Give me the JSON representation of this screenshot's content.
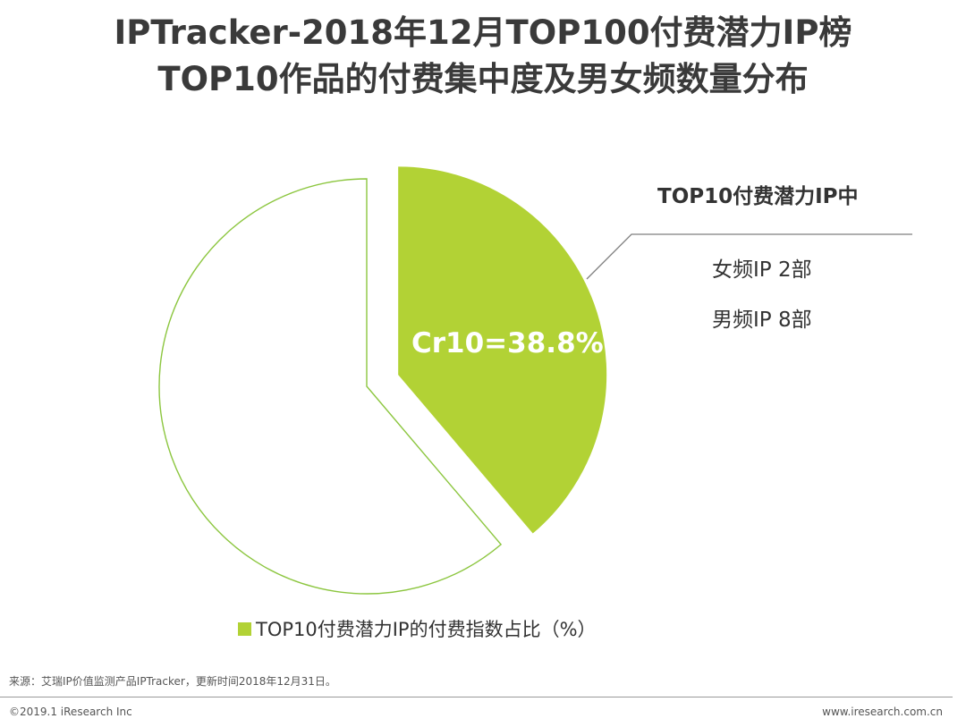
{
  "title": {
    "line1": "IPTracker-2018年12月TOP100付费潜力IP榜",
    "line2": "TOP10作品的付费集中度及男女频数量分布"
  },
  "chart_data": {
    "type": "pie",
    "slices": [
      {
        "label": "Cr10=38.8%",
        "value": 38.8,
        "color": "#b2d235"
      },
      {
        "label": "",
        "value": 61.2,
        "color": "#ffffff"
      }
    ],
    "legend": [
      {
        "label": "TOP10付费潜力IP的付费指数占比（%）",
        "color": "#b2d235"
      }
    ],
    "legend_position": "bottom",
    "outline_color": "#8cc63f"
  },
  "annotation": {
    "title": "TOP10付费潜力IP中",
    "female": "女频IP 2部",
    "male": "男频IP 8部"
  },
  "footer": {
    "source": "来源：艾瑞IP价值监测产品IPTracker，更新时间2018年12月31日。",
    "copyright": "©2019.1 iResearch Inc",
    "website": "www.iresearch.com.cn"
  }
}
